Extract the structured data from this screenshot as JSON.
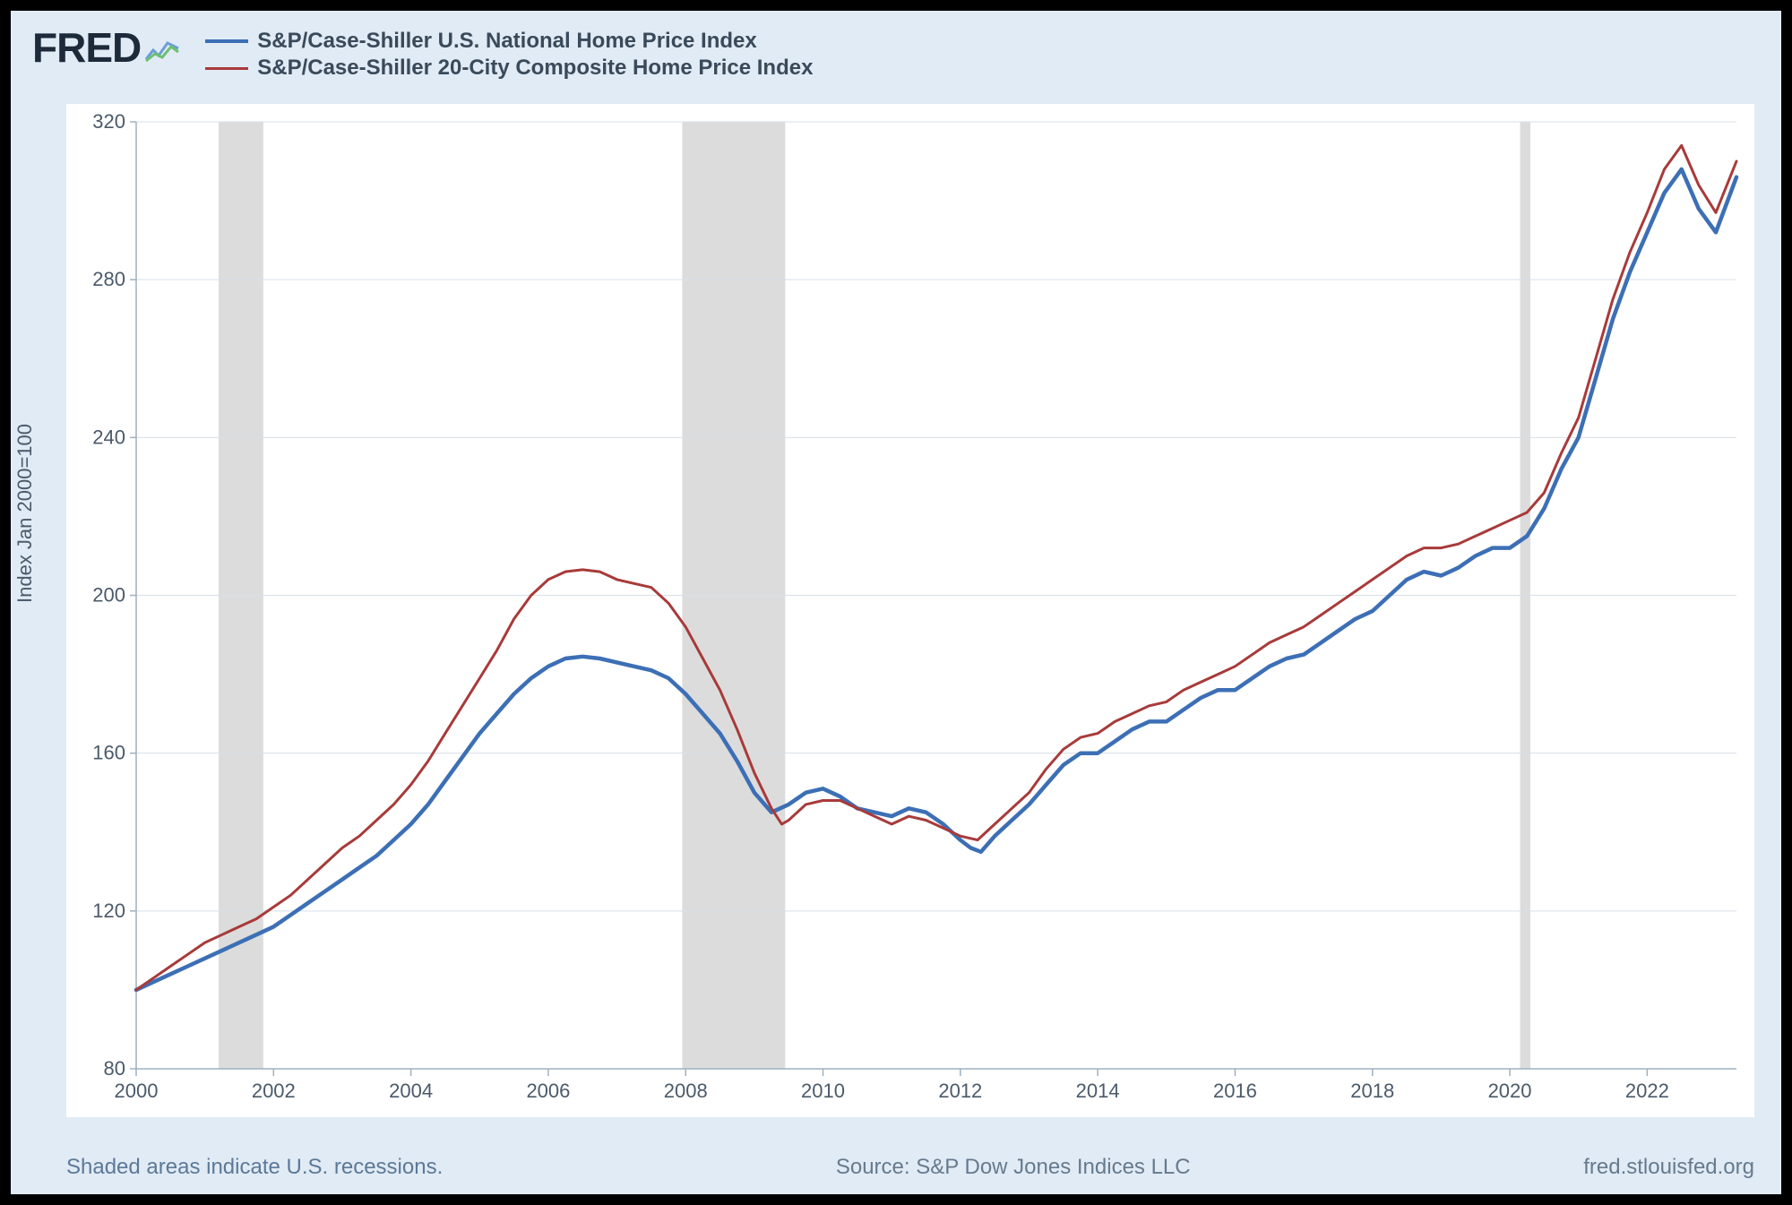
{
  "brand": {
    "name": "FRED"
  },
  "legend": {
    "series": [
      {
        "label": "S&P/Case-Shiller U.S. National Home Price Index",
        "color": "#3c6fb5",
        "line_width": 4
      },
      {
        "label": "S&P/Case-Shiller 20-City Composite Home Price Index",
        "color": "#a83a3a",
        "line_width": 3
      }
    ],
    "font_size": 24,
    "font_weight": 700
  },
  "chart": {
    "type": "line",
    "background_color": "#ffffff",
    "frame_background": "#e1ebf5",
    "outer_border": "#000000",
    "grid_color": "#d8dfe6",
    "axis_color": "#9fb0c0",
    "axis_label_color": "#4b5a6a",
    "axis_font_size": 22,
    "ylabel": "Index Jan 2000=100",
    "xlim": [
      2000,
      2023.3
    ],
    "ylim": [
      80,
      320
    ],
    "xticks": [
      2000,
      2002,
      2004,
      2006,
      2008,
      2010,
      2012,
      2014,
      2016,
      2018,
      2020,
      2022
    ],
    "yticks": [
      80,
      120,
      160,
      200,
      240,
      280,
      320
    ],
    "recessions": [
      {
        "start": 2001.2,
        "end": 2001.85
      },
      {
        "start": 2007.95,
        "end": 2009.45
      },
      {
        "start": 2020.15,
        "end": 2020.3
      }
    ],
    "recession_color": "#dcdcdc",
    "series": [
      {
        "name": "national",
        "color": "#3c6fb5",
        "width": 4.5,
        "points": [
          [
            2000.0,
            100
          ],
          [
            2000.25,
            102
          ],
          [
            2000.5,
            104
          ],
          [
            2000.75,
            106
          ],
          [
            2001.0,
            108
          ],
          [
            2001.25,
            110
          ],
          [
            2001.5,
            112
          ],
          [
            2001.75,
            114
          ],
          [
            2002.0,
            116
          ],
          [
            2002.25,
            119
          ],
          [
            2002.5,
            122
          ],
          [
            2002.75,
            125
          ],
          [
            2003.0,
            128
          ],
          [
            2003.25,
            131
          ],
          [
            2003.5,
            134
          ],
          [
            2003.75,
            138
          ],
          [
            2004.0,
            142
          ],
          [
            2004.25,
            147
          ],
          [
            2004.5,
            153
          ],
          [
            2004.75,
            159
          ],
          [
            2005.0,
            165
          ],
          [
            2005.25,
            170
          ],
          [
            2005.5,
            175
          ],
          [
            2005.75,
            179
          ],
          [
            2006.0,
            182
          ],
          [
            2006.25,
            184
          ],
          [
            2006.5,
            184.5
          ],
          [
            2006.75,
            184
          ],
          [
            2007.0,
            183
          ],
          [
            2007.25,
            182
          ],
          [
            2007.5,
            181
          ],
          [
            2007.75,
            179
          ],
          [
            2008.0,
            175
          ],
          [
            2008.25,
            170
          ],
          [
            2008.5,
            165
          ],
          [
            2008.75,
            158
          ],
          [
            2009.0,
            150
          ],
          [
            2009.25,
            145
          ],
          [
            2009.5,
            147
          ],
          [
            2009.75,
            150
          ],
          [
            2010.0,
            151
          ],
          [
            2010.25,
            149
          ],
          [
            2010.5,
            146
          ],
          [
            2010.75,
            145
          ],
          [
            2011.0,
            144
          ],
          [
            2011.25,
            146
          ],
          [
            2011.5,
            145
          ],
          [
            2011.75,
            142
          ],
          [
            2012.0,
            138
          ],
          [
            2012.15,
            136
          ],
          [
            2012.3,
            135
          ],
          [
            2012.5,
            139
          ],
          [
            2012.75,
            143
          ],
          [
            2013.0,
            147
          ],
          [
            2013.25,
            152
          ],
          [
            2013.5,
            157
          ],
          [
            2013.75,
            160
          ],
          [
            2014.0,
            160
          ],
          [
            2014.25,
            163
          ],
          [
            2014.5,
            166
          ],
          [
            2014.75,
            168
          ],
          [
            2015.0,
            168
          ],
          [
            2015.25,
            171
          ],
          [
            2015.5,
            174
          ],
          [
            2015.75,
            176
          ],
          [
            2016.0,
            176
          ],
          [
            2016.25,
            179
          ],
          [
            2016.5,
            182
          ],
          [
            2016.75,
            184
          ],
          [
            2017.0,
            185
          ],
          [
            2017.25,
            188
          ],
          [
            2017.5,
            191
          ],
          [
            2017.75,
            194
          ],
          [
            2018.0,
            196
          ],
          [
            2018.25,
            200
          ],
          [
            2018.5,
            204
          ],
          [
            2018.75,
            206
          ],
          [
            2019.0,
            205
          ],
          [
            2019.25,
            207
          ],
          [
            2019.5,
            210
          ],
          [
            2019.75,
            212
          ],
          [
            2020.0,
            212
          ],
          [
            2020.25,
            215
          ],
          [
            2020.5,
            222
          ],
          [
            2020.75,
            232
          ],
          [
            2021.0,
            240
          ],
          [
            2021.25,
            255
          ],
          [
            2021.5,
            270
          ],
          [
            2021.75,
            282
          ],
          [
            2022.0,
            292
          ],
          [
            2022.25,
            302
          ],
          [
            2022.5,
            308
          ],
          [
            2022.75,
            298
          ],
          [
            2023.0,
            292
          ],
          [
            2023.3,
            306
          ]
        ]
      },
      {
        "name": "twenty_city",
        "color": "#a83a3a",
        "width": 3,
        "points": [
          [
            2000.0,
            100
          ],
          [
            2000.25,
            103
          ],
          [
            2000.5,
            106
          ],
          [
            2000.75,
            109
          ],
          [
            2001.0,
            112
          ],
          [
            2001.25,
            114
          ],
          [
            2001.5,
            116
          ],
          [
            2001.75,
            118
          ],
          [
            2002.0,
            121
          ],
          [
            2002.25,
            124
          ],
          [
            2002.5,
            128
          ],
          [
            2002.75,
            132
          ],
          [
            2003.0,
            136
          ],
          [
            2003.25,
            139
          ],
          [
            2003.5,
            143
          ],
          [
            2003.75,
            147
          ],
          [
            2004.0,
            152
          ],
          [
            2004.25,
            158
          ],
          [
            2004.5,
            165
          ],
          [
            2004.75,
            172
          ],
          [
            2005.0,
            179
          ],
          [
            2005.25,
            186
          ],
          [
            2005.5,
            194
          ],
          [
            2005.75,
            200
          ],
          [
            2006.0,
            204
          ],
          [
            2006.25,
            206
          ],
          [
            2006.5,
            206.5
          ],
          [
            2006.75,
            206
          ],
          [
            2007.0,
            204
          ],
          [
            2007.25,
            203
          ],
          [
            2007.5,
            202
          ],
          [
            2007.75,
            198
          ],
          [
            2008.0,
            192
          ],
          [
            2008.25,
            184
          ],
          [
            2008.5,
            176
          ],
          [
            2008.75,
            166
          ],
          [
            2009.0,
            155
          ],
          [
            2009.25,
            146
          ],
          [
            2009.4,
            142
          ],
          [
            2009.5,
            143
          ],
          [
            2009.75,
            147
          ],
          [
            2010.0,
            148
          ],
          [
            2010.25,
            148
          ],
          [
            2010.5,
            146
          ],
          [
            2010.75,
            144
          ],
          [
            2011.0,
            142
          ],
          [
            2011.25,
            144
          ],
          [
            2011.5,
            143
          ],
          [
            2011.75,
            141
          ],
          [
            2012.0,
            139
          ],
          [
            2012.25,
            138
          ],
          [
            2012.5,
            142
          ],
          [
            2012.75,
            146
          ],
          [
            2013.0,
            150
          ],
          [
            2013.25,
            156
          ],
          [
            2013.5,
            161
          ],
          [
            2013.75,
            164
          ],
          [
            2014.0,
            165
          ],
          [
            2014.25,
            168
          ],
          [
            2014.5,
            170
          ],
          [
            2014.75,
            172
          ],
          [
            2015.0,
            173
          ],
          [
            2015.25,
            176
          ],
          [
            2015.5,
            178
          ],
          [
            2015.75,
            180
          ],
          [
            2016.0,
            182
          ],
          [
            2016.25,
            185
          ],
          [
            2016.5,
            188
          ],
          [
            2016.75,
            190
          ],
          [
            2017.0,
            192
          ],
          [
            2017.25,
            195
          ],
          [
            2017.5,
            198
          ],
          [
            2017.75,
            201
          ],
          [
            2018.0,
            204
          ],
          [
            2018.25,
            207
          ],
          [
            2018.5,
            210
          ],
          [
            2018.75,
            212
          ],
          [
            2019.0,
            212
          ],
          [
            2019.25,
            213
          ],
          [
            2019.5,
            215
          ],
          [
            2019.75,
            217
          ],
          [
            2020.0,
            219
          ],
          [
            2020.25,
            221
          ],
          [
            2020.5,
            226
          ],
          [
            2020.75,
            236
          ],
          [
            2021.0,
            245
          ],
          [
            2021.25,
            260
          ],
          [
            2021.5,
            275
          ],
          [
            2021.75,
            287
          ],
          [
            2022.0,
            297
          ],
          [
            2022.25,
            308
          ],
          [
            2022.5,
            314
          ],
          [
            2022.75,
            304
          ],
          [
            2023.0,
            297
          ],
          [
            2023.3,
            310
          ]
        ]
      }
    ]
  },
  "footer": {
    "left": "Shaded areas indicate U.S. recessions.",
    "center": "Source: S&P Dow Jones Indices LLC",
    "right": "fred.stlouisfed.org"
  }
}
